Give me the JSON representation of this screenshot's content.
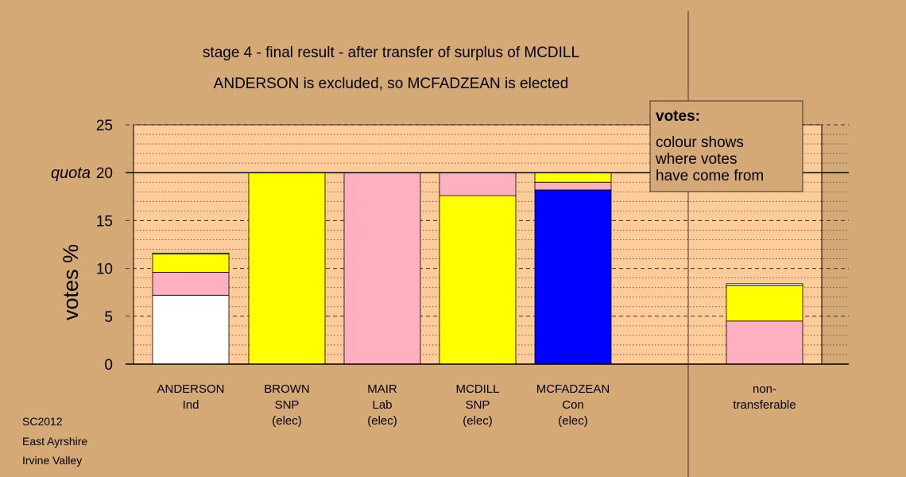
{
  "chart_data": {
    "type": "bar",
    "stacked": true,
    "title": "stage 4 - final result - after transfer of surplus of MCDILL",
    "subtitle": "ANDERSON is excluded, so MCFADZEAN is elected",
    "ylabel": "votes %",
    "ylim": [
      0,
      25
    ],
    "yticks": [
      0,
      5,
      10,
      15,
      20,
      25
    ],
    "quota": {
      "value": 20,
      "label": "quota"
    },
    "grid": true,
    "categories": [
      {
        "lines": [
          "ANDERSON",
          "Ind"
        ],
        "segments": [
          {
            "value": 7.2,
            "color": "#FFFFFF"
          },
          {
            "value": 2.4,
            "color": "#FFB0C0"
          },
          {
            "value": 1.9,
            "color": "#FFFF00"
          },
          {
            "value": 0.1,
            "color": "#FFFFFF"
          }
        ]
      },
      {
        "lines": [
          "BROWN",
          "SNP",
          "(elec)"
        ],
        "segments": [
          {
            "value": 20.0,
            "color": "#FFFF00"
          }
        ]
      },
      {
        "lines": [
          "MAIR",
          "Lab",
          "(elec)"
        ],
        "segments": [
          {
            "value": 20.0,
            "color": "#FFB0C0"
          }
        ]
      },
      {
        "lines": [
          "MCDILL",
          "SNP",
          "(elec)"
        ],
        "segments": [
          {
            "value": 17.6,
            "color": "#FFFF00"
          },
          {
            "value": 2.4,
            "color": "#FFB0C0"
          }
        ]
      },
      {
        "lines": [
          "MCFADZEAN",
          "Con",
          "(elec)"
        ],
        "segments": [
          {
            "value": 18.2,
            "color": "#0000FF"
          },
          {
            "value": 0.8,
            "color": "#FFB0C0"
          },
          {
            "value": 1.0,
            "color": "#FFFF00"
          }
        ]
      },
      {
        "lines": [
          "non-",
          "transferable"
        ],
        "segments": [
          {
            "value": 4.5,
            "color": "#FFB0C0"
          },
          {
            "value": 3.7,
            "color": "#FFFF00"
          },
          {
            "value": 0.2,
            "color": "#FFFFFF"
          }
        ]
      }
    ],
    "legend": {
      "title": "votes:",
      "lines": [
        "colour shows",
        "where votes",
        "have come from"
      ],
      "position": "top-right"
    },
    "footer": [
      "SC2012",
      "East Ayrshire",
      "Irvine Valley"
    ],
    "colors": {
      "background": "#D4A976",
      "plot_area": "#FFCC99"
    }
  }
}
